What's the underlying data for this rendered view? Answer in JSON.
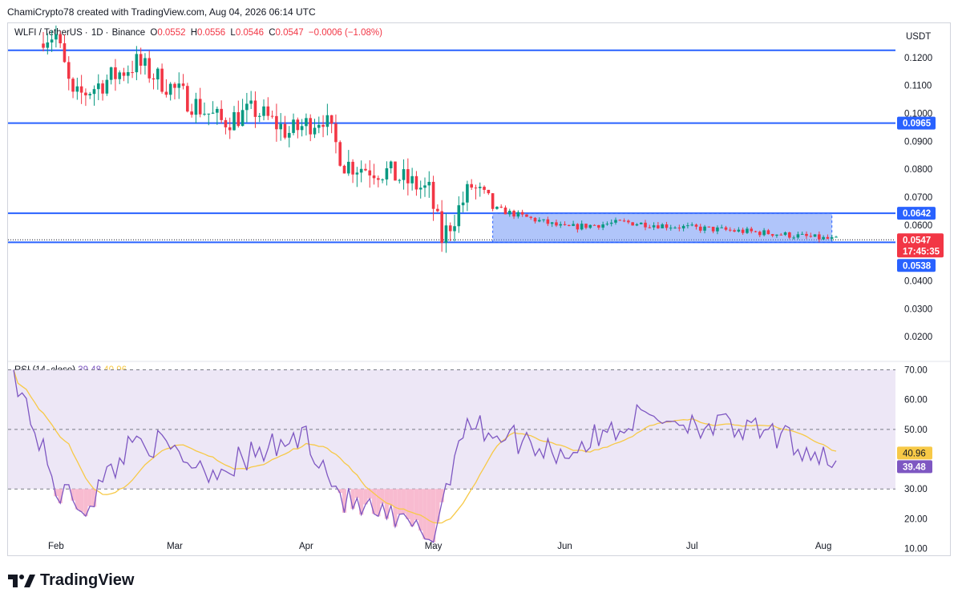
{
  "header": {
    "creator_text": "ChamiCrypto78 created with TradingView.com, Aug 04, 2026 06:14 UTC"
  },
  "legend": {
    "symbol": "WLFI / TetherUS",
    "interval": "1D",
    "exchange": "Binance",
    "open_label": "O",
    "open": "0.0552",
    "high_label": "H",
    "high": "0.0556",
    "low_label": "L",
    "low": "0.0546",
    "close_label": "C",
    "close": "0.0547",
    "change": "−0.0006 (−1.08%)"
  },
  "price_axis": {
    "currency": "USDT",
    "ticks": [
      "0.1200",
      "0.1100",
      "0.1000",
      "0.0900",
      "0.0800",
      "0.0700",
      "0.0600",
      "0.0400",
      "0.0300",
      "0.0200"
    ]
  },
  "badges": {
    "level_high": "0.0965",
    "level_mid": "0.0642",
    "last_price": "0.0547",
    "countdown": "17:45:35",
    "level_low": "0.0538"
  },
  "rsi": {
    "title": "RSI (14, close)",
    "value": "39.48",
    "ma_value": "40.96",
    "ticks": [
      "70.00",
      "60.00",
      "50.00",
      "30.00",
      "20.00",
      "10.00"
    ]
  },
  "time_axis": [
    "Feb",
    "Mar",
    "Apr",
    "May",
    "Jun",
    "Jul",
    "Aug"
  ],
  "brand": {
    "name": "TradingView"
  },
  "colors": {
    "up": "#089981",
    "down": "#f23645",
    "level_line": "#2962ff",
    "range_box": "#6f95f5",
    "rsi_line": "#7e57c2",
    "rsi_ma": "#f7c947",
    "rsi_band": "#ede7f6"
  },
  "chart_data": {
    "type": "candlestick",
    "title": "WLFI / TetherUS · 1D · Binance",
    "ylim": [
      0.012,
      0.132
    ],
    "levels": [
      0.0965,
      0.0642,
      0.0538
    ],
    "range_box": {
      "from": "May 15",
      "to": "Aug 04",
      "top": 0.0642,
      "bottom": 0.0538
    },
    "key_closes": [
      {
        "x": "Feb 01",
        "y": 0.128
      },
      {
        "x": "Feb 05",
        "y": 0.105
      },
      {
        "x": "Feb 20",
        "y": 0.118
      },
      {
        "x": "Mar 05",
        "y": 0.104
      },
      {
        "x": "Mar 12",
        "y": 0.097
      },
      {
        "x": "Mar 20",
        "y": 0.101
      },
      {
        "x": "Mar 28",
        "y": 0.093
      },
      {
        "x": "Apr 05",
        "y": 0.099
      },
      {
        "x": "Apr 10",
        "y": 0.082
      },
      {
        "x": "Apr 20",
        "y": 0.079
      },
      {
        "x": "Apr 30",
        "y": 0.072
      },
      {
        "x": "May 03",
        "y": 0.055
      },
      {
        "x": "May 10",
        "y": 0.074
      },
      {
        "x": "May 15",
        "y": 0.066
      },
      {
        "x": "Jun 01",
        "y": 0.059
      },
      {
        "x": "Jun 15",
        "y": 0.061
      },
      {
        "x": "Jul 01",
        "y": 0.059
      },
      {
        "x": "Jul 20",
        "y": 0.057
      },
      {
        "x": "Aug 04",
        "y": 0.0547
      }
    ],
    "rsi_series": {
      "name": "RSI (14, close)",
      "ylim": [
        8,
        72
      ],
      "bands": [
        70,
        50,
        30
      ],
      "points": [
        {
          "x": "Jan 22",
          "y": 70
        },
        {
          "x": "Feb 01",
          "y": 30
        },
        {
          "x": "Feb 08",
          "y": 24
        },
        {
          "x": "Feb 20",
          "y": 48
        },
        {
          "x": "Mar 10",
          "y": 36
        },
        {
          "x": "Apr 01",
          "y": 48
        },
        {
          "x": "Apr 10",
          "y": 26
        },
        {
          "x": "May 01",
          "y": 14
        },
        {
          "x": "May 08",
          "y": 52
        },
        {
          "x": "Jun 01",
          "y": 42
        },
        {
          "x": "Jun 20",
          "y": 55
        },
        {
          "x": "Jul 20",
          "y": 48
        },
        {
          "x": "Aug 04",
          "y": 39.48
        }
      ]
    }
  }
}
